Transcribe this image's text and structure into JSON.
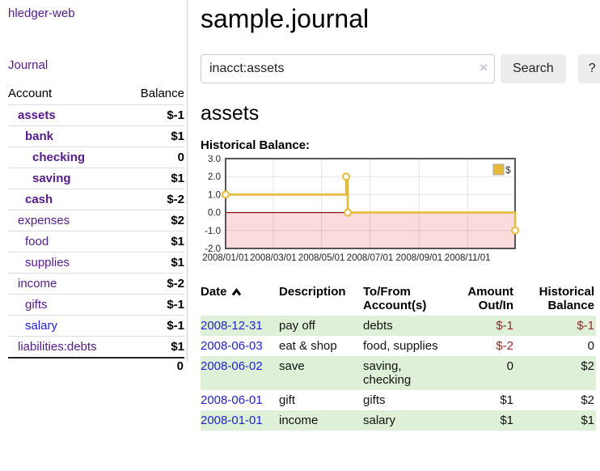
{
  "app_title": "hledger-web",
  "header": {
    "title": "sample.journal"
  },
  "search": {
    "value": "inacct:assets",
    "placeholder": "",
    "clear_icon": "×",
    "button_label": "Search",
    "help_label": "?"
  },
  "sidebar": {
    "journal_label": "Journal",
    "accounts": {
      "headers": {
        "account": "Account",
        "balance": "Balance"
      },
      "rows": [
        {
          "name": "assets",
          "depth": 1,
          "current": true,
          "balance": "$-1",
          "negative": true
        },
        {
          "name": "bank",
          "depth": 2,
          "current": true,
          "balance": "$1",
          "negative": false
        },
        {
          "name": "checking",
          "depth": 3,
          "current": true,
          "balance": "0",
          "negative": false
        },
        {
          "name": "saving",
          "depth": 3,
          "current": true,
          "balance": "$1",
          "negative": false
        },
        {
          "name": "cash",
          "depth": 2,
          "current": true,
          "balance": "$-2",
          "negative": true
        },
        {
          "name": "expenses",
          "depth": 1,
          "current": false,
          "balance": "$2",
          "negative": false
        },
        {
          "name": "food",
          "depth": 2,
          "current": false,
          "balance": "$1",
          "negative": false
        },
        {
          "name": "supplies",
          "depth": 2,
          "current": false,
          "balance": "$1",
          "negative": false
        },
        {
          "name": "income",
          "depth": 1,
          "current": false,
          "balance": "$-2",
          "negative": true
        },
        {
          "name": "gifts",
          "depth": 2,
          "current": false,
          "balance": "$-1",
          "negative": true
        },
        {
          "name": "salary",
          "depth": 2,
          "current": false,
          "balance": "$-1",
          "negative": true,
          "unvisited": true
        },
        {
          "name": "liabilities:debts",
          "depth": 1,
          "current": false,
          "balance": "$1",
          "negative": false
        }
      ],
      "total": "0"
    }
  },
  "account_page": {
    "title": "assets",
    "chart_label": "Historical Balance:"
  },
  "chart_data": {
    "type": "line",
    "step": true,
    "title": "Historical Balance:",
    "series": [
      {
        "name": "$",
        "color": "#e5ba3a",
        "points": [
          [
            "2008-01-01",
            1
          ],
          [
            "2008-06-01",
            2
          ],
          [
            "2008-06-03",
            0
          ],
          [
            "2008-12-31",
            -1
          ]
        ]
      }
    ],
    "x_range": [
      "2008-01-01",
      "2008-12-31"
    ],
    "x_ticks": [
      "2008/01/01",
      "2008/03/01",
      "2008/05/01",
      "2008/07/01",
      "2008/09/01",
      "2008/11/01"
    ],
    "y_ticks": [
      3.0,
      2.0,
      1.0,
      0.0,
      -1.0,
      -2.0
    ],
    "ylim": [
      -2,
      3
    ],
    "grid": true,
    "legend": {
      "label": "$",
      "position": "top-right"
    },
    "zero_line_color": "#8d0d0d",
    "negative_region_color": "#fbdcdc",
    "frame_color": "#555555",
    "marker": {
      "fill": "#ffffff",
      "radius": 4
    }
  },
  "register": {
    "headers": {
      "date": "Date",
      "description": "Description",
      "account": "To/From Account(s)",
      "amount": "Amount Out/In",
      "balance": "Historical Balance"
    },
    "rows": [
      {
        "date": "2008-12-31",
        "description": "pay off",
        "accounts": "debts",
        "amount": "$-1",
        "amount_negative": true,
        "balance": "$-1",
        "balance_negative": true
      },
      {
        "date": "2008-06-03",
        "description": "eat & shop",
        "accounts": "food, supplies",
        "amount": "$-2",
        "amount_negative": true,
        "balance": "0",
        "balance_negative": false
      },
      {
        "date": "2008-06-02",
        "description": "save",
        "accounts": "saving, checking",
        "amount": "0",
        "amount_negative": false,
        "balance": "$2",
        "balance_negative": false
      },
      {
        "date": "2008-06-01",
        "description": "gift",
        "accounts": "gifts",
        "amount": "$1",
        "amount_negative": false,
        "balance": "$2",
        "balance_negative": false
      },
      {
        "date": "2008-01-01",
        "description": "income",
        "accounts": "salary",
        "amount": "$1",
        "amount_negative": false,
        "balance": "$1",
        "balance_negative": false
      }
    ]
  },
  "colors": {
    "link_purple": "#551a8b",
    "link_blue": "#2222cc",
    "negative_strong": "#8e1b1b",
    "negative_soft": "#c46a6a",
    "row_stripe_green": "#dff0d8",
    "chart_line_gold": "#e5ba3a"
  }
}
